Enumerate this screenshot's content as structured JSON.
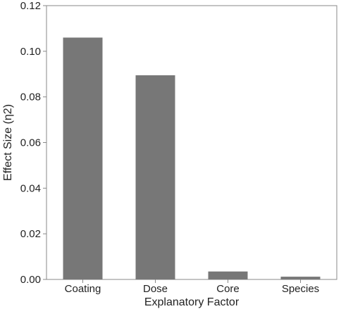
{
  "chart_data": {
    "type": "bar",
    "title": "",
    "xlabel": "Explanatory Factor",
    "ylabel": "Effect Size (η2)",
    "categories": [
      "Coating",
      "Dose",
      "Core",
      "Species"
    ],
    "values": [
      0.106,
      0.0895,
      0.0035,
      0.0012
    ],
    "ylim": [
      0,
      0.12
    ],
    "yticks": [
      "0.00",
      "0.02",
      "0.04",
      "0.06",
      "0.08",
      "0.10",
      "0.12"
    ],
    "grid": false,
    "legend": "none",
    "bar_color": "#777777",
    "axis_color": "#888888"
  }
}
